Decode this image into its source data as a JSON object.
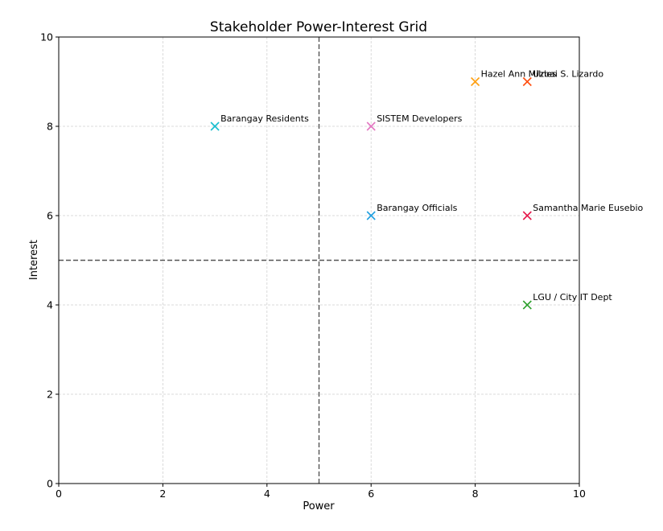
{
  "chart_data": {
    "type": "scatter",
    "title": "Stakeholder Power-Interest Grid",
    "xlabel": "Power",
    "ylabel": "Interest",
    "xlim": [
      0,
      10
    ],
    "ylim": [
      0,
      10
    ],
    "xticks": [
      0,
      2,
      4,
      6,
      8,
      10
    ],
    "yticks": [
      0,
      2,
      4,
      6,
      8,
      10
    ],
    "grid": true,
    "quadrant_lines": {
      "x": 5,
      "y": 5
    },
    "marker": "x",
    "points": [
      {
        "label": "Barangay Residents",
        "x": 3,
        "y": 8,
        "color": "#17becf"
      },
      {
        "label": "SISTEM Developers",
        "x": 6,
        "y": 8,
        "color": "#e377c2"
      },
      {
        "label": "Barangay Officials",
        "x": 6,
        "y": 6,
        "color": "#1f9fe0"
      },
      {
        "label": "Hazel Ann Milnes",
        "x": 8,
        "y": 9,
        "color": "#ff9f10"
      },
      {
        "label": "Uzbai S. Lizardo",
        "x": 9,
        "y": 9,
        "color": "#ff4e10"
      },
      {
        "label": "Samantha Marie Eusebio",
        "x": 9,
        "y": 6,
        "color": "#e6194b"
      },
      {
        "label": "LGU / City IT Dept",
        "x": 9,
        "y": 4,
        "color": "#2ca02c"
      }
    ]
  }
}
